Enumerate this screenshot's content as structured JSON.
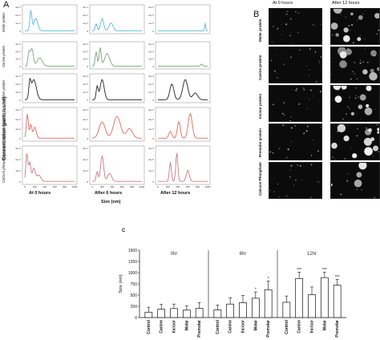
{
  "panel_a": {
    "letter": "A",
    "ylabel": "Concentration (particles/ml)",
    "xlabel": "Size (nm)",
    "columns": [
      "At 0 hours",
      "After 6 hours",
      "After 12 hours"
    ],
    "rows": [
      "Molar protein",
      "Canine protein",
      "Incisor protein",
      "Premolar protein",
      "Calcium phosphate control"
    ],
    "colors": [
      "#5bb9d6",
      "#7aa07a",
      "#222222",
      "#e06b60",
      "#c97b8a"
    ],
    "xticks": [
      "0",
      "200",
      "400",
      "600",
      "800",
      "1000"
    ]
  },
  "panel_b": {
    "letter": "B",
    "columns": [
      "At 0 hours",
      "After 12 hours"
    ],
    "rows": [
      "Molar protein",
      "Canine protein",
      "Incisor protein",
      "Premolar protein",
      "Calcium Phosphate"
    ]
  },
  "chart_data": {
    "type": "bar",
    "panel_letter": "C",
    "groups": [
      "0hr",
      "6hr",
      "12hr"
    ],
    "categories": [
      "Control",
      "Canine",
      "Incisor",
      "Molar",
      "Premolar"
    ],
    "ylabel": "Size (nm)",
    "ylim": [
      0,
      1500
    ],
    "yticks": [
      "0",
      "250",
      "500",
      "750",
      "1000",
      "1250",
      "1500"
    ],
    "series": [
      {
        "values": [
          120,
          185,
          200,
          165,
          205
        ],
        "errors": [
          110,
          110,
          100,
          100,
          130
        ]
      },
      {
        "values": [
          170,
          300,
          330,
          430,
          620
        ],
        "errors": [
          110,
          140,
          160,
          140,
          190
        ]
      },
      {
        "values": [
          340,
          870,
          510,
          890,
          720
        ],
        "errors": [
          140,
          140,
          170,
          120,
          130
        ]
      }
    ],
    "significance": [
      [
        "",
        "",
        "",
        "",
        ""
      ],
      [
        "",
        "",
        "",
        "*",
        "*"
      ],
      [
        "",
        "***",
        "",
        "***",
        "***"
      ]
    ]
  }
}
